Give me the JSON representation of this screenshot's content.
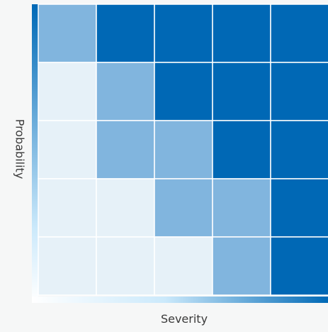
{
  "chart_data": {
    "type": "heatmap",
    "title": "",
    "xlabel": "Severity",
    "ylabel": "Probability",
    "rows": 5,
    "cols": 5,
    "levels": [
      [
        2,
        3,
        3,
        3,
        3
      ],
      [
        0,
        2,
        3,
        3,
        3
      ],
      [
        0,
        2,
        2,
        3,
        3
      ],
      [
        0,
        0,
        2,
        2,
        3
      ],
      [
        0,
        0,
        0,
        2,
        3
      ]
    ],
    "colors": {
      "0": "#e6f1f8",
      "2": "#81b5de",
      "3": "#0068b5",
      "grid_line": "#ffffff",
      "axis_light": "#cbe9fb",
      "axis_dark": "#0069b6"
    }
  }
}
